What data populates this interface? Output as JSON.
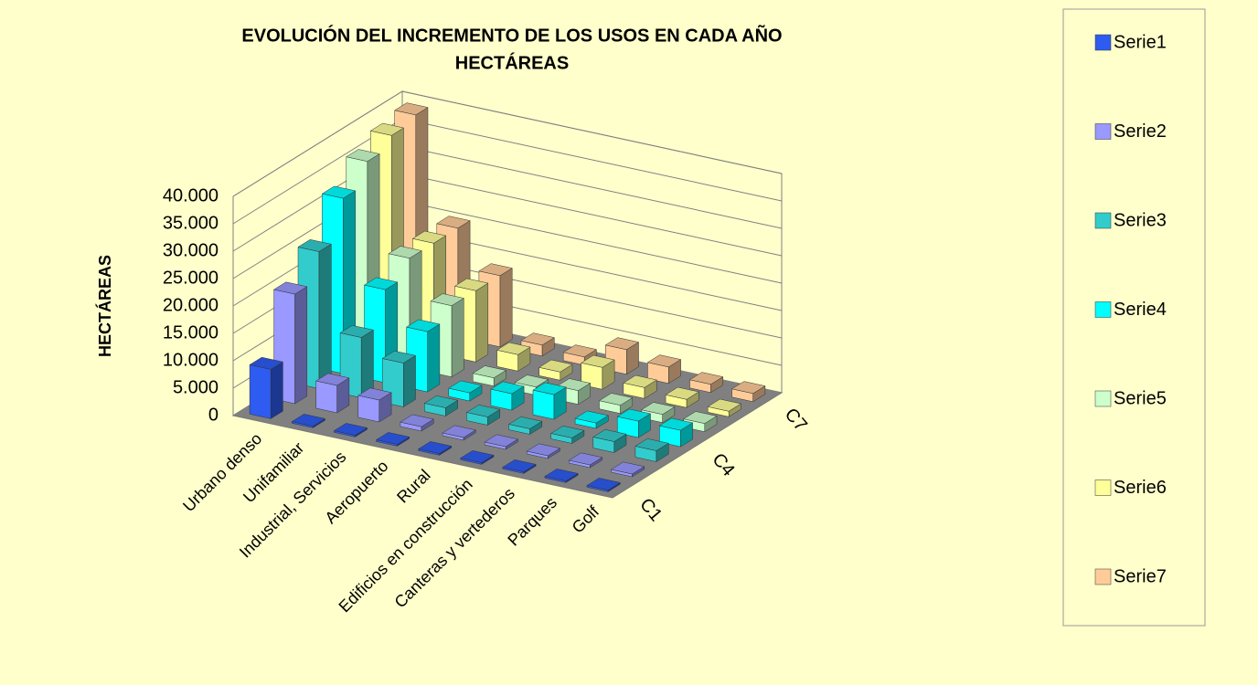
{
  "chart_data": {
    "type": "bar3d",
    "title": "EVOLUCIÓN DEL INCREMENTO DE LOS USOS EN CADA AÑO",
    "subtitle": "HECTÁREAS",
    "y_label": "HECTÁREAS",
    "categories": [
      "Urbano denso",
      "Unifamiliar",
      "Industrial, Servicios",
      "Aeropuerto",
      "Rural",
      "Edificios en construcción",
      "Canteras y vertederos",
      "Parques",
      "Golf"
    ],
    "depth_labels": [
      "C1",
      null,
      null,
      "C4",
      null,
      null,
      "C7"
    ],
    "series": [
      {
        "name": "Serie1",
        "color": "#2e5cf0",
        "values": [
          9000,
          300,
          300,
          300,
          300,
          300,
          300,
          300,
          300
        ]
      },
      {
        "name": "Serie2",
        "color": "#9999ff",
        "values": [
          20000,
          5000,
          4000,
          800,
          500,
          500,
          500,
          500,
          500
        ]
      },
      {
        "name": "Serie3",
        "color": "#33cccc",
        "values": [
          25000,
          11000,
          8000,
          1500,
          1500,
          1000,
          1000,
          2000,
          2000
        ]
      },
      {
        "name": "Serie4",
        "color": "#00ffff",
        "values": [
          32000,
          17000,
          11000,
          1500,
          3000,
          4500,
          1000,
          3000,
          3000
        ]
      },
      {
        "name": "Serie5",
        "color": "#ccffcc",
        "values": [
          36000,
          20000,
          13000,
          1500,
          1500,
          2500,
          1500,
          1500,
          1500
        ]
      },
      {
        "name": "Serie6",
        "color": "#ffff99",
        "values": [
          38000,
          20000,
          13000,
          3000,
          1500,
          4000,
          2000,
          1500,
          1000
        ]
      },
      {
        "name": "Serie7",
        "color": "#ffcc99",
        "values": [
          39000,
          20000,
          13000,
          2000,
          1500,
          4500,
          3000,
          1500,
          1500
        ]
      }
    ],
    "ylim": [
      0,
      40000
    ],
    "yticks": [
      0,
      {
        "value": 5000,
        "label": "5.000"
      },
      {
        "value": 10000,
        "label": "10.000"
      },
      {
        "value": 15000,
        "label": "15.000"
      },
      {
        "value": 20000,
        "label": "20.000"
      },
      {
        "value": 25000,
        "label": "25.000"
      },
      {
        "value": 30000,
        "label": "30.000"
      },
      {
        "value": 35000,
        "label": "35.000"
      },
      {
        "value": 40000,
        "label": "40.000"
      }
    ],
    "grid": true
  }
}
